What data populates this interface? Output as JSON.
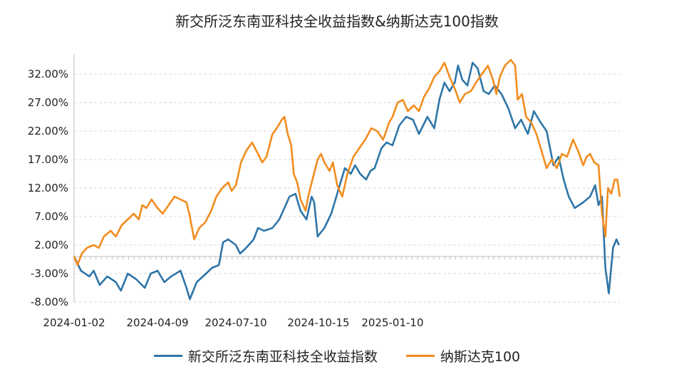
{
  "chart_data": {
    "type": "line",
    "title": "新交所泛东南亚科技全收益指数&纳斯达克100指数",
    "xlabel": "",
    "ylabel": "",
    "x_ticks": [
      "2024-01-02",
      "2024-04-09",
      "2024-07-10",
      "2024-10-15",
      "2025-01-10"
    ],
    "y_ticks": [
      "32.00%",
      "27.00%",
      "22.00%",
      "17.00%",
      "12.00%",
      "7.00%",
      "2.00%",
      "-3.00%",
      "-8.00%"
    ],
    "ylim": [
      -8,
      35.5
    ],
    "grid": true,
    "legend_position": "bottom",
    "series": [
      {
        "name": "新交所泛东南亚科技全收益指数",
        "color": "#2e75a8",
        "points": [
          [
            "2024-01-02",
            0.0
          ],
          [
            "2024-01-10",
            -2.5
          ],
          [
            "2024-01-20",
            -3.5
          ],
          [
            "2024-01-25",
            -2.5
          ],
          [
            "2024-02-01",
            -5.0
          ],
          [
            "2024-02-10",
            -3.5
          ],
          [
            "2024-02-20",
            -4.5
          ],
          [
            "2024-02-26",
            -6.0
          ],
          [
            "2024-03-05",
            -3.0
          ],
          [
            "2024-03-15",
            -4.0
          ],
          [
            "2024-03-25",
            -5.5
          ],
          [
            "2024-04-01",
            -3.0
          ],
          [
            "2024-04-09",
            -2.5
          ],
          [
            "2024-04-17",
            -4.5
          ],
          [
            "2024-04-25",
            -3.5
          ],
          [
            "2024-05-06",
            -2.5
          ],
          [
            "2024-05-13",
            -5.5
          ],
          [
            "2024-05-17",
            -7.5
          ],
          [
            "2024-05-25",
            -4.5
          ],
          [
            "2024-06-05",
            -3.0
          ],
          [
            "2024-06-12",
            -2.0
          ],
          [
            "2024-06-20",
            -1.5
          ],
          [
            "2024-06-25",
            2.5
          ],
          [
            "2024-07-01",
            3.0
          ],
          [
            "2024-07-10",
            2.0
          ],
          [
            "2024-07-15",
            0.5
          ],
          [
            "2024-07-22",
            1.5
          ],
          [
            "2024-07-31",
            3.0
          ],
          [
            "2024-08-05",
            5.0
          ],
          [
            "2024-08-12",
            4.5
          ],
          [
            "2024-08-22",
            5.0
          ],
          [
            "2024-08-30",
            6.5
          ],
          [
            "2024-09-05",
            8.5
          ],
          [
            "2024-09-11",
            10.5
          ],
          [
            "2024-09-18",
            11.0
          ],
          [
            "2024-09-24",
            8.0
          ],
          [
            "2024-10-01",
            6.5
          ],
          [
            "2024-10-07",
            10.5
          ],
          [
            "2024-10-10",
            9.5
          ],
          [
            "2024-10-14",
            3.5
          ],
          [
            "2024-10-22",
            5.0
          ],
          [
            "2024-10-30",
            7.5
          ],
          [
            "2024-11-07",
            11.5
          ],
          [
            "2024-11-15",
            15.5
          ],
          [
            "2024-11-22",
            14.5
          ],
          [
            "2024-11-27",
            16.0
          ],
          [
            "2024-12-03",
            14.5
          ],
          [
            "2024-12-10",
            13.5
          ],
          [
            "2024-12-15",
            15.0
          ],
          [
            "2024-12-20",
            15.5
          ],
          [
            "2024-12-28",
            19.0
          ],
          [
            "2025-01-03",
            20.0
          ],
          [
            "2025-01-10",
            19.5
          ],
          [
            "2025-01-18",
            23.0
          ],
          [
            "2025-01-26",
            24.5
          ],
          [
            "2025-02-03",
            24.0
          ],
          [
            "2025-02-10",
            21.5
          ],
          [
            "2025-02-20",
            24.5
          ],
          [
            "2025-02-28",
            22.5
          ],
          [
            "2025-03-06",
            27.5
          ],
          [
            "2025-03-12",
            30.5
          ],
          [
            "2025-03-18",
            29.0
          ],
          [
            "2025-03-24",
            30.5
          ],
          [
            "2025-03-28",
            33.5
          ],
          [
            "2025-04-02",
            31.0
          ],
          [
            "2025-04-08",
            30.0
          ],
          [
            "2025-04-14",
            34.0
          ],
          [
            "2025-04-20",
            33.0
          ],
          [
            "2025-04-27",
            29.0
          ],
          [
            "2025-05-03",
            28.5
          ],
          [
            "2025-05-10",
            30.0
          ],
          [
            "2025-05-18",
            28.5
          ],
          [
            "2025-05-26",
            26.0
          ],
          [
            "2025-06-03",
            22.5
          ],
          [
            "2025-06-10",
            24.0
          ],
          [
            "2025-06-18",
            21.5
          ],
          [
            "2025-06-25",
            25.5
          ],
          [
            "2025-07-03",
            23.5
          ],
          [
            "2025-07-10",
            22.0
          ],
          [
            "2025-07-18",
            16.0
          ],
          [
            "2025-07-24",
            17.5
          ],
          [
            "2025-07-30",
            13.5
          ],
          [
            "2025-08-05",
            10.5
          ],
          [
            "2025-08-12",
            8.5
          ],
          [
            "2025-08-22",
            9.5
          ],
          [
            "2025-08-30",
            10.5
          ],
          [
            "2025-09-05",
            12.5
          ],
          [
            "2025-09-09",
            9.0
          ],
          [
            "2025-09-13",
            10.5
          ],
          [
            "2025-09-17",
            -2.0
          ],
          [
            "2025-09-21",
            -6.5
          ],
          [
            "2025-09-26",
            1.5
          ],
          [
            "2025-09-30",
            3.0
          ],
          [
            "2025-10-03",
            2.0
          ]
        ]
      },
      {
        "name": "纳斯达克100",
        "color": "#f28c1e",
        "points": [
          [
            "2024-01-02",
            0.0
          ],
          [
            "2024-01-06",
            -1.5
          ],
          [
            "2024-01-11",
            0.5
          ],
          [
            "2024-01-17",
            1.5
          ],
          [
            "2024-01-25",
            2.0
          ],
          [
            "2024-01-31",
            1.5
          ],
          [
            "2024-02-06",
            3.5
          ],
          [
            "2024-02-14",
            4.5
          ],
          [
            "2024-02-20",
            3.5
          ],
          [
            "2024-02-27",
            5.5
          ],
          [
            "2024-03-05",
            6.5
          ],
          [
            "2024-03-12",
            7.5
          ],
          [
            "2024-03-18",
            6.5
          ],
          [
            "2024-03-22",
            9.0
          ],
          [
            "2024-03-27",
            8.5
          ],
          [
            "2024-04-02",
            10.0
          ],
          [
            "2024-04-09",
            8.5
          ],
          [
            "2024-04-15",
            7.5
          ],
          [
            "2024-04-22",
            9.0
          ],
          [
            "2024-04-29",
            10.5
          ],
          [
            "2024-05-06",
            10.0
          ],
          [
            "2024-05-13",
            9.5
          ],
          [
            "2024-05-17",
            7.0
          ],
          [
            "2024-05-22",
            3.0
          ],
          [
            "2024-05-28",
            5.0
          ],
          [
            "2024-06-04",
            6.0
          ],
          [
            "2024-06-11",
            8.0
          ],
          [
            "2024-06-17",
            10.5
          ],
          [
            "2024-06-24",
            12.0
          ],
          [
            "2024-07-01",
            13.0
          ],
          [
            "2024-07-05",
            11.5
          ],
          [
            "2024-07-10",
            12.5
          ],
          [
            "2024-07-16",
            16.5
          ],
          [
            "2024-07-22",
            18.5
          ],
          [
            "2024-07-29",
            20.0
          ],
          [
            "2024-08-05",
            18.0
          ],
          [
            "2024-08-10",
            16.5
          ],
          [
            "2024-08-15",
            17.5
          ],
          [
            "2024-08-22",
            21.5
          ],
          [
            "2024-08-27",
            22.5
          ],
          [
            "2024-09-02",
            24.0
          ],
          [
            "2024-09-05",
            24.5
          ],
          [
            "2024-09-09",
            21.5
          ],
          [
            "2024-09-13",
            19.5
          ],
          [
            "2024-09-16",
            14.5
          ],
          [
            "2024-09-20",
            13.0
          ],
          [
            "2024-09-24",
            10.0
          ],
          [
            "2024-09-30",
            8.0
          ],
          [
            "2024-10-03",
            10.5
          ],
          [
            "2024-10-08",
            13.5
          ],
          [
            "2024-10-14",
            17.0
          ],
          [
            "2024-10-18",
            18.0
          ],
          [
            "2024-10-22",
            16.5
          ],
          [
            "2024-10-28",
            15.0
          ],
          [
            "2024-11-01",
            16.5
          ],
          [
            "2024-11-06",
            12.5
          ],
          [
            "2024-11-12",
            10.5
          ],
          [
            "2024-11-18",
            14.5
          ],
          [
            "2024-11-25",
            17.5
          ],
          [
            "2024-12-02",
            19.0
          ],
          [
            "2024-12-09",
            20.5
          ],
          [
            "2024-12-16",
            22.5
          ],
          [
            "2024-12-23",
            22.0
          ],
          [
            "2024-12-30",
            20.5
          ],
          [
            "2025-01-06",
            23.5
          ],
          [
            "2025-01-10",
            24.5
          ],
          [
            "2025-01-16",
            27.0
          ],
          [
            "2025-01-22",
            27.5
          ],
          [
            "2025-01-28",
            25.5
          ],
          [
            "2025-02-04",
            26.5
          ],
          [
            "2025-02-10",
            25.5
          ],
          [
            "2025-02-16",
            28.0
          ],
          [
            "2025-02-22",
            29.5
          ],
          [
            "2025-02-28",
            31.5
          ],
          [
            "2025-03-06",
            32.5
          ],
          [
            "2025-03-12",
            34.0
          ],
          [
            "2025-03-18",
            31.5
          ],
          [
            "2025-03-24",
            29.5
          ],
          [
            "2025-03-30",
            27.0
          ],
          [
            "2025-04-05",
            28.5
          ],
          [
            "2025-04-12",
            29.0
          ],
          [
            "2025-04-18",
            30.5
          ],
          [
            "2025-04-25",
            32.0
          ],
          [
            "2025-05-02",
            33.5
          ],
          [
            "2025-05-08",
            31.0
          ],
          [
            "2025-05-12",
            28.5
          ],
          [
            "2025-05-16",
            31.5
          ],
          [
            "2025-05-22",
            33.5
          ],
          [
            "2025-05-29",
            34.5
          ],
          [
            "2025-06-03",
            33.5
          ],
          [
            "2025-06-06",
            27.5
          ],
          [
            "2025-06-11",
            28.5
          ],
          [
            "2025-06-16",
            24.5
          ],
          [
            "2025-06-22",
            23.5
          ],
          [
            "2025-06-28",
            21.5
          ],
          [
            "2025-07-04",
            18.5
          ],
          [
            "2025-07-10",
            15.5
          ],
          [
            "2025-07-16",
            17.0
          ],
          [
            "2025-07-22",
            15.5
          ],
          [
            "2025-07-28",
            18.0
          ],
          [
            "2025-08-03",
            17.5
          ],
          [
            "2025-08-10",
            20.5
          ],
          [
            "2025-08-16",
            18.5
          ],
          [
            "2025-08-22",
            16.0
          ],
          [
            "2025-08-26",
            17.5
          ],
          [
            "2025-08-30",
            18.0
          ],
          [
            "2025-09-04",
            16.5
          ],
          [
            "2025-09-09",
            16.0
          ],
          [
            "2025-09-13",
            7.5
          ],
          [
            "2025-09-17",
            3.5
          ],
          [
            "2025-09-20",
            12.0
          ],
          [
            "2025-09-24",
            11.0
          ],
          [
            "2025-09-28",
            13.5
          ],
          [
            "2025-10-01",
            13.5
          ],
          [
            "2025-10-04",
            10.5
          ]
        ]
      }
    ]
  }
}
